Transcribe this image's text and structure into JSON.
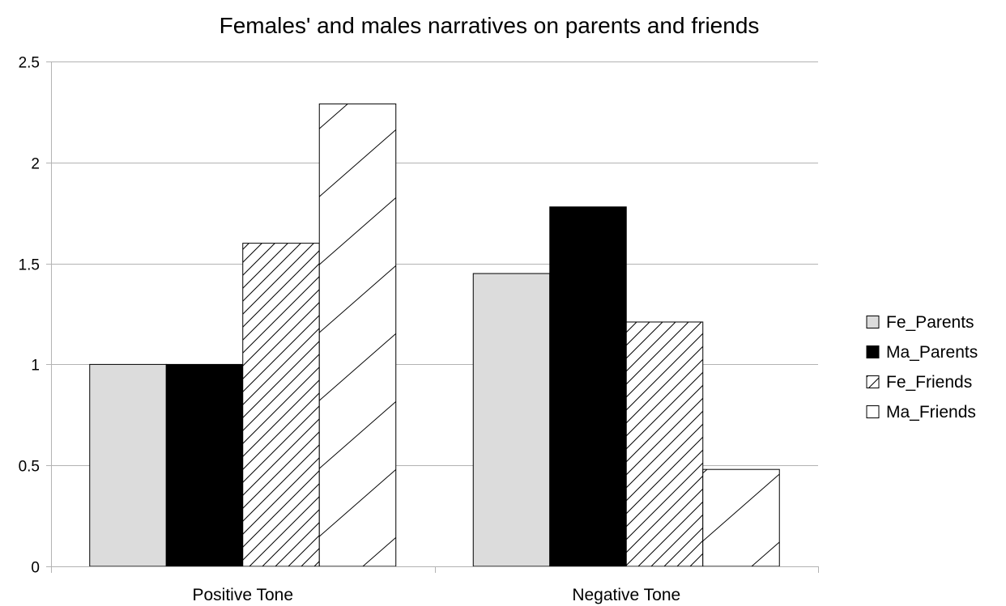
{
  "chart_data": {
    "type": "bar",
    "title": "Females' and males narratives on parents and friends",
    "xlabel": "",
    "ylabel": "",
    "categories": [
      "Positive Tone",
      "Negative Tone"
    ],
    "ylim": [
      0,
      2.5
    ],
    "yticks": [
      "0",
      "0.5",
      "1",
      "1.5",
      "2",
      "2.5"
    ],
    "grid": true,
    "legend_position": "right",
    "series": [
      {
        "name": "Fe_Parents",
        "values": [
          1.0,
          1.45
        ],
        "fill": "#dcdcdc",
        "pattern": "solid"
      },
      {
        "name": "Ma_Parents",
        "values": [
          1.0,
          1.78
        ],
        "fill": "#000000",
        "pattern": "solid"
      },
      {
        "name": "Fe_Friends",
        "values": [
          1.6,
          1.21
        ],
        "fill": "#ffffff",
        "pattern": "dense-diagonal"
      },
      {
        "name": "Ma_Friends",
        "values": [
          2.29,
          0.48
        ],
        "fill": "#ffffff",
        "pattern": "sparse-diagonal"
      }
    ]
  }
}
